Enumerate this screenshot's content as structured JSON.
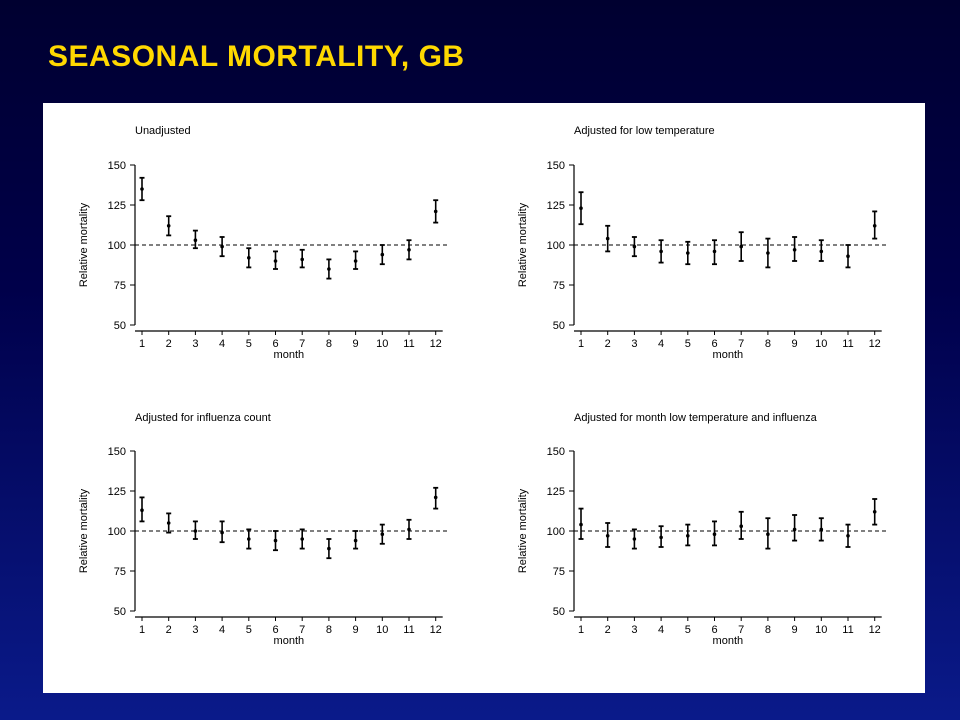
{
  "slide": {
    "title": "SEASONAL MORTALITY, GB"
  },
  "chart_data": [
    {
      "type": "scatter",
      "title": "Unadjusted",
      "xlabel": "month",
      "ylabel": "Relative mortality",
      "x": [
        1,
        2,
        3,
        4,
        5,
        6,
        7,
        8,
        9,
        10,
        11,
        12
      ],
      "xticks": [
        "1",
        "2",
        "3",
        "4",
        "5",
        "6",
        "7",
        "8",
        "9",
        "10",
        "11",
        "12"
      ],
      "ylim": [
        50,
        150
      ],
      "yticks": [
        "50",
        "75",
        "100",
        "125",
        "150"
      ],
      "reference_line": 100,
      "series": [
        {
          "estimate": [
            135,
            112,
            103,
            99,
            92,
            90,
            91,
            85,
            90,
            94,
            97,
            121
          ],
          "lower": [
            128,
            106,
            98,
            93,
            86,
            85,
            86,
            79,
            85,
            88,
            91,
            114
          ],
          "upper": [
            142,
            118,
            109,
            105,
            98,
            96,
            97,
            91,
            96,
            100,
            103,
            128
          ]
        }
      ]
    },
    {
      "type": "scatter",
      "title": "Adjusted for low temperature",
      "xlabel": "month",
      "ylabel": "Relative mortality",
      "x": [
        1,
        2,
        3,
        4,
        5,
        6,
        7,
        8,
        9,
        10,
        11,
        12
      ],
      "xticks": [
        "1",
        "2",
        "3",
        "4",
        "5",
        "6",
        "7",
        "8",
        "9",
        "10",
        "11",
        "12"
      ],
      "ylim": [
        50,
        150
      ],
      "yticks": [
        "50",
        "75",
        "100",
        "125",
        "150"
      ],
      "reference_line": 100,
      "series": [
        {
          "estimate": [
            123,
            104,
            99,
            96,
            95,
            96,
            99,
            95,
            97,
            96,
            93,
            112
          ],
          "lower": [
            113,
            96,
            93,
            89,
            88,
            88,
            90,
            86,
            90,
            90,
            86,
            104
          ],
          "upper": [
            133,
            112,
            105,
            103,
            102,
            103,
            108,
            104,
            105,
            103,
            100,
            121
          ]
        }
      ]
    },
    {
      "type": "scatter",
      "title": "Adjusted for influenza count",
      "xlabel": "month",
      "ylabel": "Relative mortality",
      "x": [
        1,
        2,
        3,
        4,
        5,
        6,
        7,
        8,
        9,
        10,
        11,
        12
      ],
      "xticks": [
        "1",
        "2",
        "3",
        "4",
        "5",
        "6",
        "7",
        "8",
        "9",
        "10",
        "11",
        "12"
      ],
      "ylim": [
        50,
        150
      ],
      "yticks": [
        "50",
        "75",
        "100",
        "125",
        "150"
      ],
      "reference_line": 100,
      "series": [
        {
          "estimate": [
            113,
            105,
            100,
            99,
            95,
            94,
            95,
            89,
            94,
            98,
            101,
            121
          ],
          "lower": [
            106,
            99,
            95,
            93,
            89,
            88,
            89,
            83,
            89,
            92,
            95,
            114
          ],
          "upper": [
            121,
            111,
            106,
            106,
            101,
            100,
            101,
            95,
            100,
            104,
            107,
            127
          ]
        }
      ]
    },
    {
      "type": "scatter",
      "title": "Adjusted for month low temperature and influenza",
      "xlabel": "month",
      "ylabel": "Relative mortality",
      "x": [
        1,
        2,
        3,
        4,
        5,
        6,
        7,
        8,
        9,
        10,
        11,
        12
      ],
      "xticks": [
        "1",
        "2",
        "3",
        "4",
        "5",
        "6",
        "7",
        "8",
        "9",
        "10",
        "11",
        "12"
      ],
      "ylim": [
        50,
        150
      ],
      "yticks": [
        "50",
        "75",
        "100",
        "125",
        "150"
      ],
      "reference_line": 100,
      "series": [
        {
          "estimate": [
            104,
            97,
            95,
            96,
            97,
            98,
            103,
            98,
            101,
            101,
            97,
            112
          ],
          "lower": [
            95,
            90,
            89,
            90,
            91,
            91,
            95,
            89,
            94,
            94,
            90,
            104
          ],
          "upper": [
            114,
            105,
            101,
            103,
            104,
            106,
            112,
            108,
            110,
            108,
            104,
            120
          ]
        }
      ]
    }
  ]
}
